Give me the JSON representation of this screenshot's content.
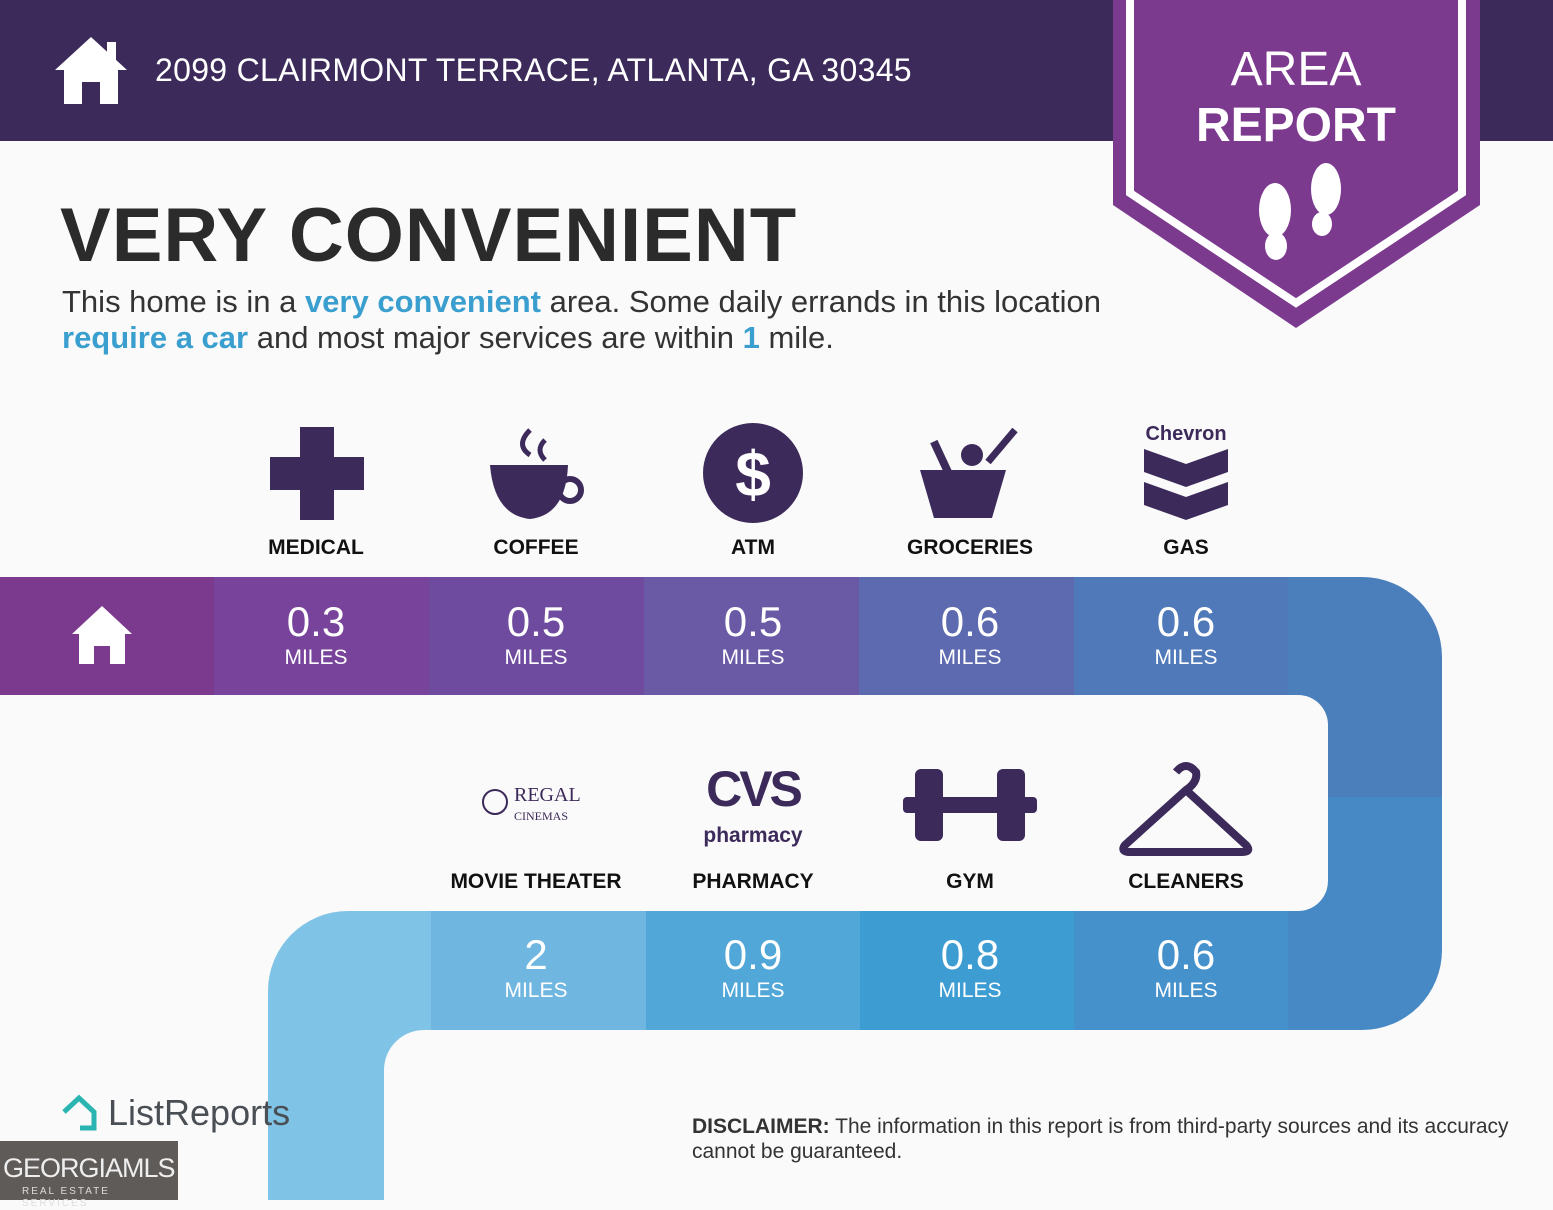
{
  "header": {
    "address": "2099 CLAIRMONT TERRACE, ATLANTA, GA 30345",
    "home_icon": "house-icon"
  },
  "badge": {
    "line1": "AREA",
    "line2": "REPORT",
    "icon": "footprints-icon",
    "color": "#7b3a8e"
  },
  "headline": "VERY CONVENIENT",
  "description": {
    "p1": "This home is in a ",
    "h1": "very convenient",
    "p2": " area. Some daily errands in this location ",
    "h2": "require a car",
    "p3": " and most major services are within ",
    "h3": "1",
    "p4": " mile."
  },
  "row1": [
    {
      "label": "MEDICAL",
      "value": "0.3",
      "unit": "MILES",
      "icon": "medical-cross-icon"
    },
    {
      "label": "COFFEE",
      "value": "0.5",
      "unit": "MILES",
      "icon": "coffee-cup-icon"
    },
    {
      "label": "ATM",
      "value": "0.5",
      "unit": "MILES",
      "icon": "dollar-icon"
    },
    {
      "label": "GROCERIES",
      "value": "0.6",
      "unit": "MILES",
      "icon": "grocery-basket-icon"
    },
    {
      "label": "GAS",
      "value": "0.6",
      "unit": "MILES",
      "icon": "chevron-logo-icon",
      "brand": "Chevron"
    }
  ],
  "row2": [
    {
      "label": "MOVIE THEATER",
      "value": "2",
      "unit": "MILES",
      "icon": "regal-cinemas-logo",
      "brand": "REGAL CINEMAS"
    },
    {
      "label": "PHARMACY",
      "value": "0.9",
      "unit": "MILES",
      "icon": "cvs-pharmacy-logo",
      "brand": "CVS pharmacy"
    },
    {
      "label": "GYM",
      "value": "0.8",
      "unit": "MILES",
      "icon": "dumbbell-icon"
    },
    {
      "label": "CLEANERS",
      "value": "0.6",
      "unit": "MILES",
      "icon": "hanger-icon"
    }
  ],
  "footer": {
    "disclaimer_label": "DISCLAIMER:",
    "disclaimer": " The information in this report is from third-party sources and its accuracy cannot be guaranteed.",
    "brand": "ListReports",
    "mls": "GEORGIAMLS",
    "mls_sub": "REAL ESTATE SERVICES"
  }
}
